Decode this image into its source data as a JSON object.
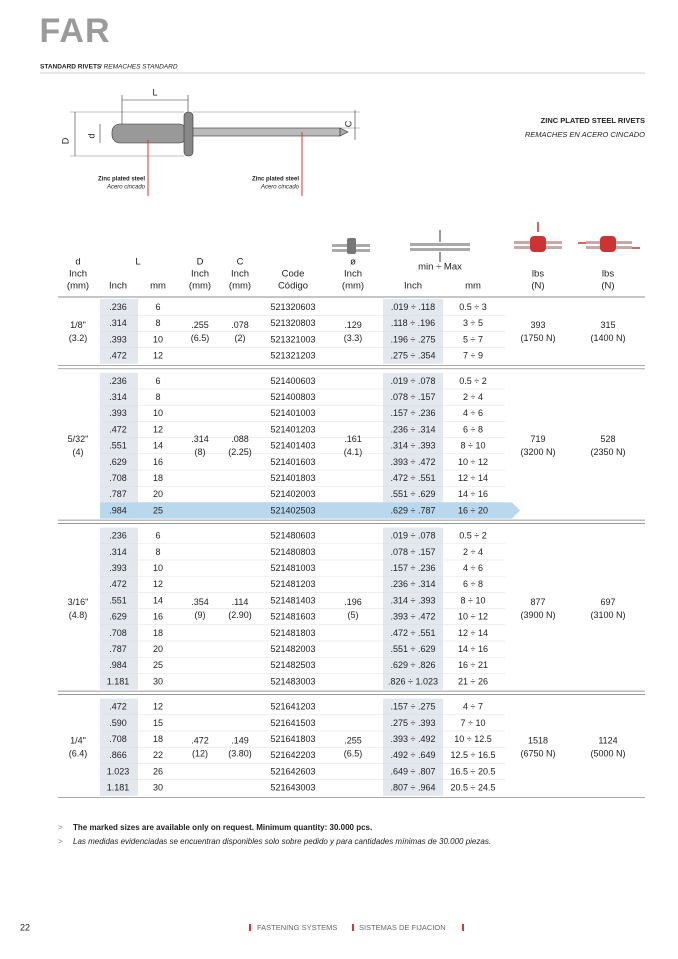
{
  "logo": "FAR",
  "section": {
    "title": "STANDARD RIVETS",
    "subtitle": "/ REMACHES STANDARD"
  },
  "product": {
    "title": "ZINC PLATED STEEL RIVETS",
    "subtitle": "REMACHES EN ACERO CINCADO"
  },
  "diagram": {
    "L": "L",
    "D": "D",
    "d": "d",
    "C": "C",
    "material_left": [
      "Zinc plated steel",
      "Acero cincado"
    ],
    "material_right": [
      "Zinc plated steel",
      "Acero cincado"
    ]
  },
  "table": {
    "header": {
      "d": [
        "d",
        "Inch",
        "(mm)"
      ],
      "L": "L",
      "L_inch": "Inch",
      "L_mm": "mm",
      "D": [
        "D",
        "Inch",
        "(mm)"
      ],
      "C": [
        "C",
        "Inch",
        "(mm)"
      ],
      "code": [
        "Code",
        "Código"
      ],
      "dia": [
        "ø",
        "Inch",
        "(mm)"
      ],
      "grip": "min ÷ Max",
      "grip_inch": "Inch",
      "grip_mm": "mm",
      "tensile": [
        "lbs",
        "(N)"
      ],
      "shear": [
        "lbs",
        "(N)"
      ]
    },
    "groups": [
      {
        "d": [
          "1/8\"",
          "(3.2)"
        ],
        "D": [
          ".255",
          "(6.5)"
        ],
        "C": [
          ".078",
          "(2)"
        ],
        "dia": [
          ".129",
          "(3.3)"
        ],
        "tensile": [
          "393",
          "(1750 N)"
        ],
        "shear": [
          "315",
          "(1400 N)"
        ],
        "rows": [
          [
            ".236",
            "6",
            "521320603",
            ".019 ÷ .118",
            "0.5 ÷ 3"
          ],
          [
            ".314",
            "8",
            "521320803",
            ".118 ÷ .196",
            "3 ÷ 5"
          ],
          [
            ".393",
            "10",
            "521321003",
            ".196 ÷ .275",
            "5 ÷ 7"
          ],
          [
            ".472",
            "12",
            "521321203",
            ".275 ÷ .354",
            "7 ÷ 9"
          ]
        ]
      },
      {
        "d": [
          "5/32\"",
          "(4)"
        ],
        "D": [
          ".314",
          "(8)"
        ],
        "C": [
          ".088",
          "(2.25)"
        ],
        "dia": [
          ".161",
          "(4.1)"
        ],
        "tensile": [
          "719",
          "(3200 N)"
        ],
        "shear": [
          "528",
          "(2350 N)"
        ],
        "marked_row": 8,
        "rows": [
          [
            ".236",
            "6",
            "521400603",
            ".019 ÷ .078",
            "0.5 ÷ 2"
          ],
          [
            ".314",
            "8",
            "521400803",
            ".078 ÷ .157",
            "2 ÷ 4"
          ],
          [
            ".393",
            "10",
            "521401003",
            ".157 ÷ .236",
            "4 ÷ 6"
          ],
          [
            ".472",
            "12",
            "521401203",
            ".236 ÷ .314",
            "6 ÷ 8"
          ],
          [
            ".551",
            "14",
            "521401403",
            ".314 ÷ .393",
            "8 ÷ 10"
          ],
          [
            ".629",
            "16",
            "521401603",
            ".393 ÷ .472",
            "10 ÷ 12"
          ],
          [
            ".708",
            "18",
            "521401803",
            ".472 ÷ .551",
            "12 ÷ 14"
          ],
          [
            ".787",
            "20",
            "521402003",
            ".551 ÷ .629",
            "14 ÷ 16"
          ],
          [
            ".984",
            "25",
            "521402503",
            ".629 ÷ .787",
            "16 ÷ 20"
          ]
        ]
      },
      {
        "d": [
          "3/16\"",
          "(4.8)"
        ],
        "D": [
          ".354",
          "(9)"
        ],
        "C": [
          ".114",
          "(2.90)"
        ],
        "dia": [
          ".196",
          "(5)"
        ],
        "tensile": [
          "877",
          "(3900 N)"
        ],
        "shear": [
          "697",
          "(3100 N)"
        ],
        "rows": [
          [
            ".236",
            "6",
            "521480603",
            ".019 ÷ .078",
            "0.5 ÷ 2"
          ],
          [
            ".314",
            "8",
            "521480803",
            ".078 ÷ .157",
            "2 ÷ 4"
          ],
          [
            ".393",
            "10",
            "521481003",
            ".157 ÷ .236",
            "4 ÷ 6"
          ],
          [
            ".472",
            "12",
            "521481203",
            ".236 ÷ .314",
            "6 ÷ 8"
          ],
          [
            ".551",
            "14",
            "521481403",
            ".314 ÷ .393",
            "8 ÷ 10"
          ],
          [
            ".629",
            "16",
            "521481603",
            ".393 ÷ .472",
            "10 ÷ 12"
          ],
          [
            ".708",
            "18",
            "521481803",
            ".472 ÷ .551",
            "12 ÷ 14"
          ],
          [
            ".787",
            "20",
            "521482003",
            ".551 ÷ .629",
            "14 ÷ 16"
          ],
          [
            ".984",
            "25",
            "521482503",
            ".629 ÷ .826",
            "16 ÷ 21"
          ],
          [
            "1.181",
            "30",
            "521483003",
            ".826 ÷ 1.023",
            "21 ÷ 26"
          ]
        ]
      },
      {
        "d": [
          "1/4\"",
          "(6.4)"
        ],
        "D": [
          ".472",
          "(12)"
        ],
        "C": [
          ".149",
          "(3.80)"
        ],
        "dia": [
          ".255",
          "(6.5)"
        ],
        "tensile": [
          "1518",
          "(6750 N)"
        ],
        "shear": [
          "1124",
          "(5000 N)"
        ],
        "rows": [
          [
            ".472",
            "12",
            "521641203",
            ".157 ÷ .275",
            "4 ÷ 7"
          ],
          [
            ".590",
            "15",
            "521641503",
            ".275 ÷ .393",
            "7 ÷ 10"
          ],
          [
            ".708",
            "18",
            "521641803",
            ".393 ÷ .492",
            "10 ÷ 12.5"
          ],
          [
            ".866",
            "22",
            "521642203",
            ".492 ÷ .649",
            "12.5 ÷ 16.5"
          ],
          [
            "1.023",
            "26",
            "521642603",
            ".649 ÷ .807",
            "16.5 ÷ 20.5"
          ],
          [
            "1.181",
            "30",
            "521643003",
            ".807 ÷ .964",
            "20.5 ÷ 24.5"
          ]
        ]
      }
    ]
  },
  "notes": [
    "The marked sizes are available only on request. Minimum quantity: 30.000 pcs.",
    "Las medidas evidenciadas se encuentran disponibles solo sobre pedido y para cantidades mínimas de 30.000 piezas."
  ],
  "footer": {
    "page": "22",
    "left": "FASTENING SYSTEMS",
    "right": "SISTEMAS DE FIJACION"
  }
}
